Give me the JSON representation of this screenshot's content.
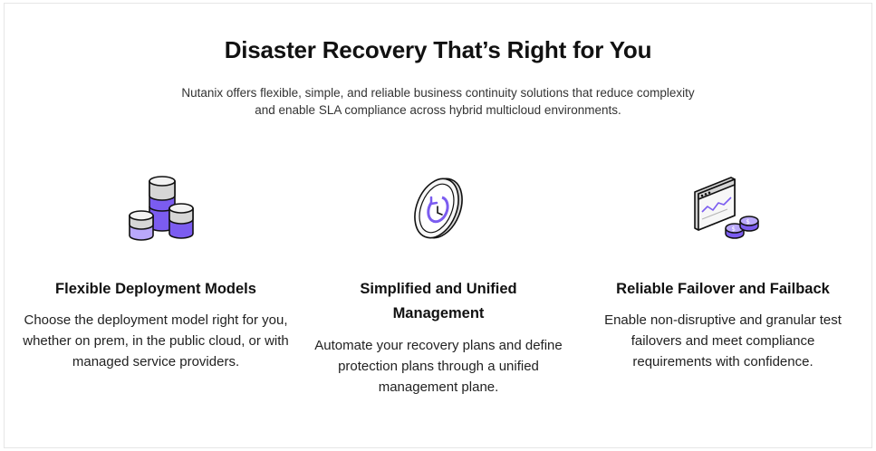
{
  "header": {
    "title": "Disaster Recovery That’s Right for You",
    "subtitle": "Nutanix offers flexible, simple, and reliable business continuity solutions that reduce complexity and enable SLA compliance across hybrid multicloud environments."
  },
  "features": [
    {
      "icon": "database-cylinders-icon",
      "title": "Flexible Deployment Models",
      "body": "Choose the deployment model right for you, whether on prem, in the public cloud, or with managed service providers."
    },
    {
      "icon": "recovery-clock-icon",
      "title": "Simplified and Unified Management",
      "body": "Automate your recovery plans and define protection plans through a unified management plane."
    },
    {
      "icon": "monitor-coins-icon",
      "title": "Reliable Failover and Failback",
      "body": "Enable non-disruptive and granular test failovers and meet compliance requirements with confidence."
    }
  ],
  "colors": {
    "accent": "#7b5cf0",
    "accent_light": "#b9a8fb",
    "gray": "#c9c9c9",
    "text": "#222222"
  }
}
